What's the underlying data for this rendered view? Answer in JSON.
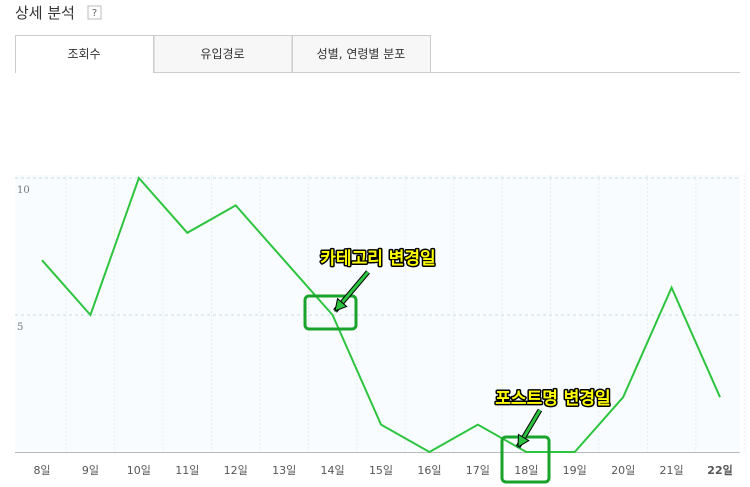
{
  "header": {
    "title": "상세 분석",
    "help": "?"
  },
  "tabs": [
    "조회수",
    "유입경로",
    "성별, 연령별 분포"
  ],
  "chart_data": {
    "type": "line",
    "categories": [
      "8일",
      "9일",
      "10일",
      "11일",
      "12일",
      "13일",
      "14일",
      "15일",
      "16일",
      "17일",
      "18일",
      "19일",
      "20일",
      "21일",
      "22일"
    ],
    "series": [
      {
        "name": "조회수",
        "color": "#2dc43f",
        "values": [
          7,
          5,
          10,
          8,
          9,
          7,
          5,
          1,
          0,
          1,
          0,
          0,
          2,
          6,
          2
        ]
      }
    ],
    "ylim": [
      0,
      10
    ],
    "yticks": [
      5,
      10
    ],
    "grid": true,
    "annotations": [
      "카테고리 변경일",
      "포스트명 변경일"
    ]
  }
}
